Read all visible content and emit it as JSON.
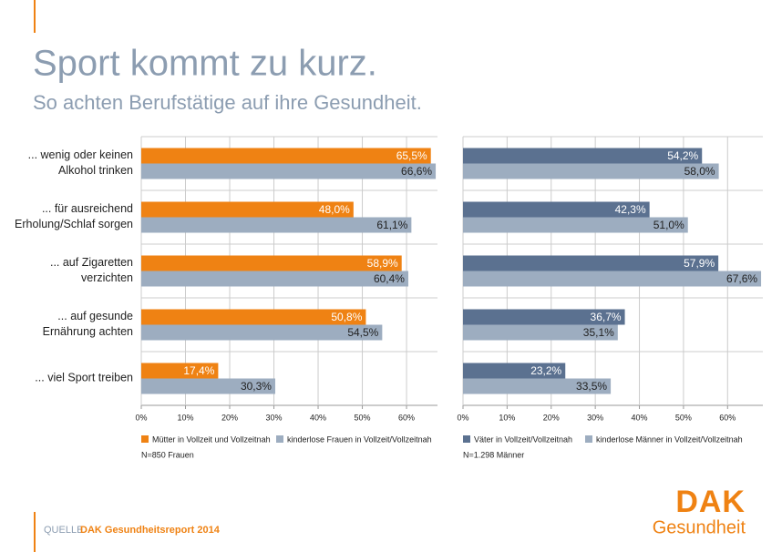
{
  "title": "Sport kommt zu kurz.",
  "subtitle": "So achten Berufstätige auf ihre Gesundheit.",
  "source_label": "QUELLE",
  "source": "DAK Gesundheitsreport 2014",
  "logo": {
    "brand": "DAK",
    "sub": "Gesundheit"
  },
  "chart_data": [
    {
      "type": "bar",
      "orientation": "horizontal",
      "categories": [
        "... wenig oder keinen\nAlkohol trinken",
        "... für ausreichend\nErholung/Schlaf sorgen",
        "... auf Zigaretten\nverzichten",
        "... auf gesunde\nErnährung achten",
        "... viel Sport treiben"
      ],
      "series": [
        {
          "name": "Mütter in Vollzeit und Vollzeitnah",
          "color": "#ef8213",
          "label_color": "#ffffff",
          "values": [
            65.5,
            48.0,
            58.9,
            50.8,
            17.4
          ],
          "value_labels": [
            "65,5%",
            "48,0%",
            "58,9%",
            "50,8%",
            "17,4%"
          ]
        },
        {
          "name": "kinderlose Frauen in Vollzeit/Vollzeitnah",
          "color": "#9dadc0",
          "label_color": "#222222",
          "values": [
            66.6,
            61.1,
            60.4,
            54.5,
            30.3
          ],
          "value_labels": [
            "66,6%",
            "61,1%",
            "60,4%",
            "54,5%",
            "30,3%"
          ]
        }
      ],
      "xlim": [
        0,
        67
      ],
      "xticks": [
        {
          "value": 0,
          "label": "0%"
        },
        {
          "value": 10,
          "label": "10%"
        },
        {
          "value": 20,
          "label": "20%"
        },
        {
          "value": 30,
          "label": "30%"
        },
        {
          "value": 40,
          "label": "40%"
        },
        {
          "value": 50,
          "label": "50%"
        },
        {
          "value": 60,
          "label": "60%"
        }
      ],
      "grid": true,
      "note": "N=850 Frauen"
    },
    {
      "type": "bar",
      "orientation": "horizontal",
      "series": [
        {
          "name": "Väter in Vollzeit/Vollzeitnah",
          "color": "#5b7190",
          "label_color": "#ffffff",
          "values": [
            54.2,
            42.3,
            57.9,
            36.7,
            23.2
          ],
          "value_labels": [
            "54,2%",
            "42,3%",
            "57,9%",
            "36,7%",
            "23,2%"
          ]
        },
        {
          "name": "kinderlose Männer in Vollzeit/Vollzeitnah",
          "color": "#9dadc0",
          "label_color": "#222222",
          "values": [
            58.0,
            51.0,
            67.6,
            35.1,
            33.5
          ],
          "value_labels": [
            "58,0%",
            "51,0%",
            "67,6%",
            "35,1%",
            "33,5%"
          ]
        }
      ],
      "xlim": [
        0,
        68
      ],
      "xticks": [
        {
          "value": 0,
          "label": "0%"
        },
        {
          "value": 10,
          "label": "10%"
        },
        {
          "value": 20,
          "label": "20%"
        },
        {
          "value": 30,
          "label": "30%"
        },
        {
          "value": 40,
          "label": "40%"
        },
        {
          "value": 50,
          "label": "50%"
        },
        {
          "value": 60,
          "label": "60%"
        }
      ],
      "grid": true,
      "note": "N=1.298 Männer"
    }
  ]
}
